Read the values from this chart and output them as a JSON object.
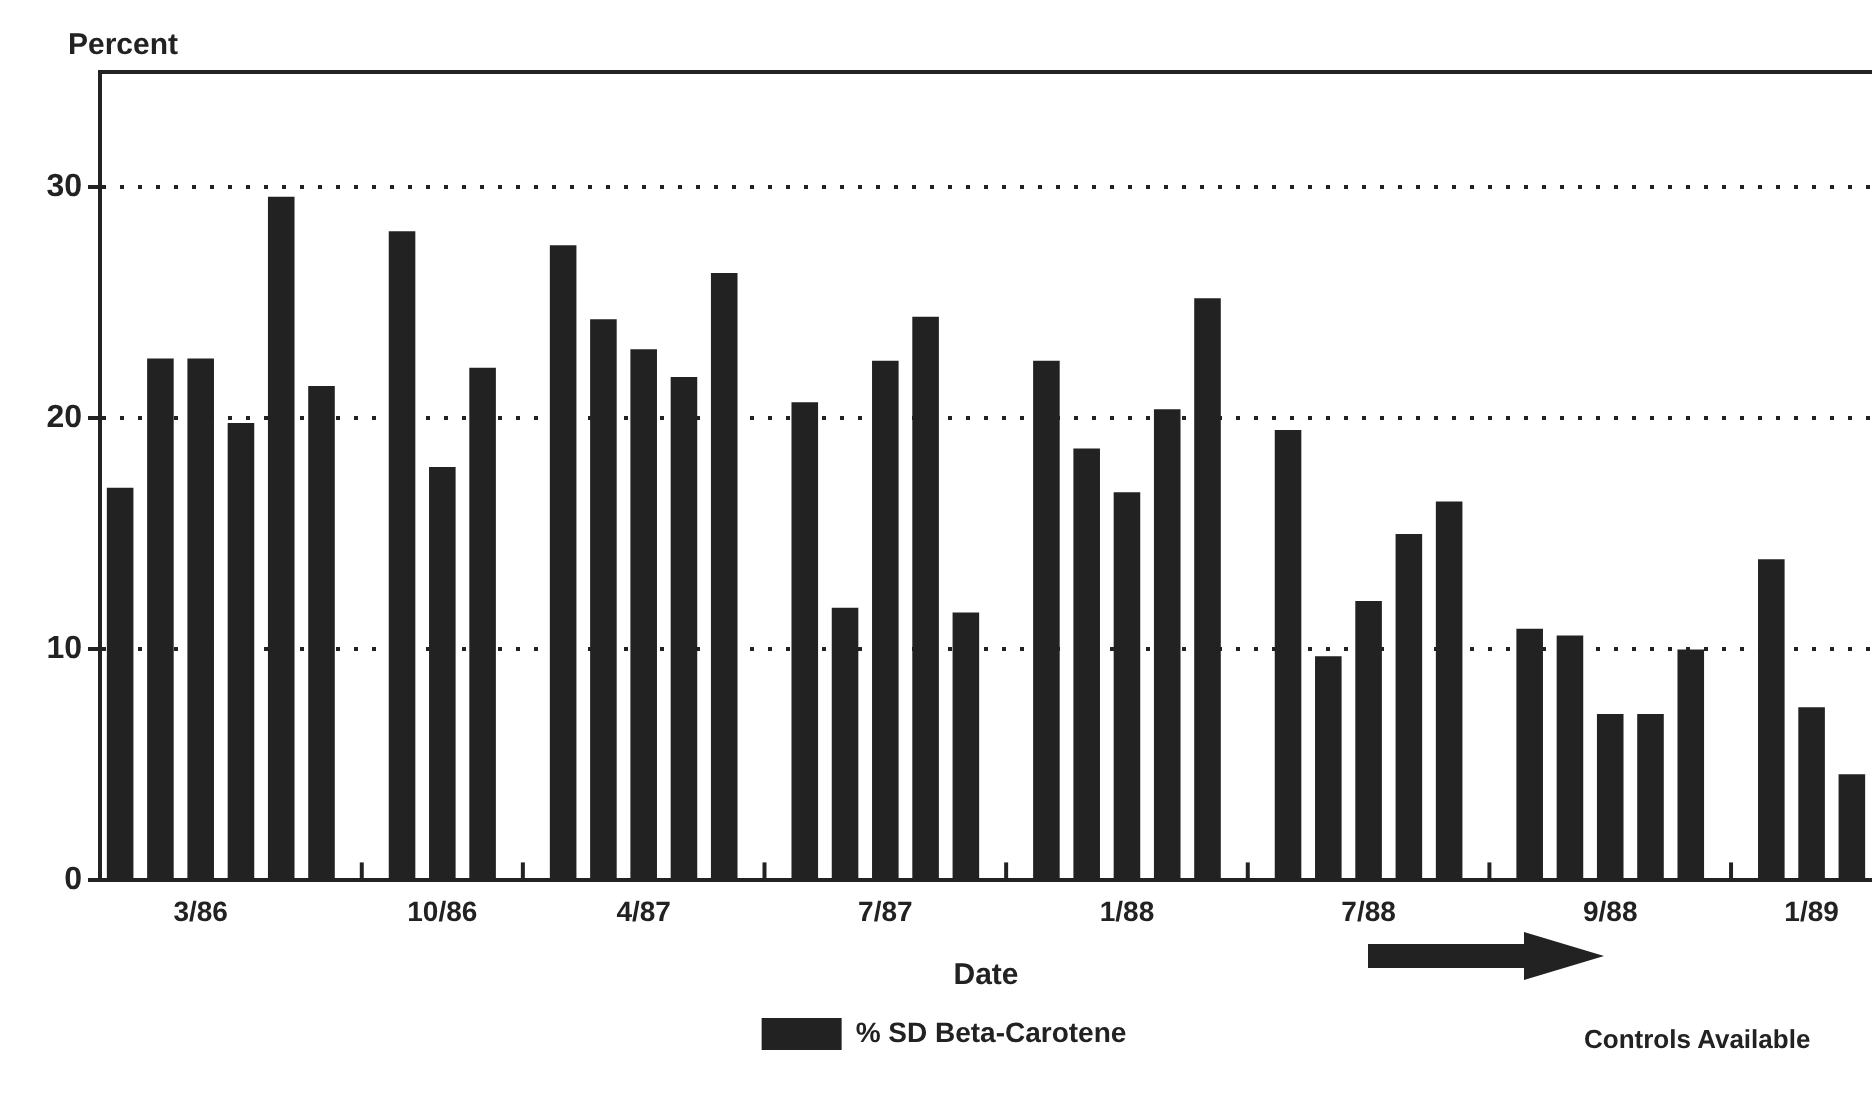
{
  "chart_data": {
    "type": "bar",
    "ylabel": "Percent",
    "xlabel": "Date",
    "annotations": [
      "Controls Available"
    ],
    "categories": [
      null,
      null,
      "3/86",
      null,
      null,
      null,
      null,
      null,
      "10/86",
      null,
      null,
      null,
      null,
      "4/87",
      null,
      null,
      null,
      null,
      null,
      "7/87",
      null,
      null,
      null,
      null,
      null,
      "1/88",
      null,
      null,
      null,
      null,
      null,
      "7/88",
      null,
      null,
      null,
      null,
      null,
      "9/88",
      null,
      null,
      null,
      null,
      "1/89",
      null
    ],
    "series": [
      {
        "name": "% SD Beta-Carotene",
        "color": "#222222",
        "values": [
          17.0,
          22.6,
          22.6,
          19.8,
          29.6,
          21.4,
          null,
          28.1,
          17.9,
          22.2,
          null,
          27.5,
          24.3,
          23.0,
          21.8,
          26.3,
          null,
          20.7,
          11.8,
          22.5,
          24.4,
          11.6,
          null,
          22.5,
          18.7,
          16.8,
          20.4,
          25.2,
          null,
          19.5,
          9.7,
          12.1,
          15.0,
          16.4,
          null,
          10.9,
          10.6,
          7.2,
          7.2,
          10.0,
          null,
          13.9,
          7.5,
          4.6
        ]
      }
    ],
    "ylim": [
      0,
      35
    ],
    "yticks": [
      0,
      10,
      20,
      30
    ],
    "grid": "y",
    "legend": "bottom"
  }
}
